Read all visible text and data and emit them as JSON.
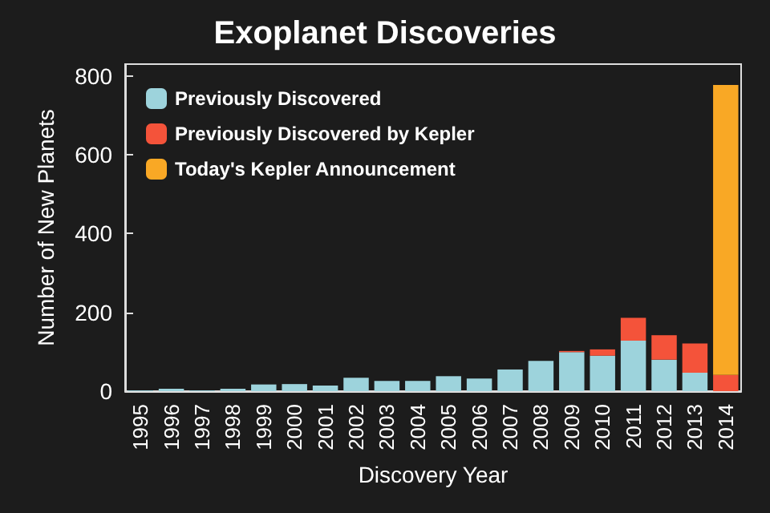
{
  "chart_data": {
    "type": "bar",
    "title": "Exoplanet Discoveries",
    "xlabel": "Discovery Year",
    "ylabel": "Number of New Planets",
    "categories": [
      "1995",
      "1996",
      "1997",
      "1998",
      "1999",
      "2000",
      "2001",
      "2002",
      "2003",
      "2004",
      "2005",
      "2006",
      "2007",
      "2008",
      "2009",
      "2010",
      "2011",
      "2012",
      "2013",
      "2014"
    ],
    "stacked": true,
    "series": [
      {
        "name": "Previously Discovered",
        "color": "#9dd3dc",
        "values": [
          2,
          6,
          2,
          6,
          17,
          18,
          14,
          34,
          26,
          26,
          38,
          32,
          55,
          77,
          99,
          90,
          128,
          80,
          47,
          null
        ]
      },
      {
        "name": "Previously Discovered by Kepler",
        "color": "#f4533a",
        "values": [
          null,
          null,
          null,
          null,
          null,
          null,
          null,
          null,
          null,
          null,
          null,
          null,
          null,
          null,
          3,
          16,
          58,
          62,
          74,
          41
        ]
      },
      {
        "name": "Today's Kepler Announcement",
        "color": "#f9a825",
        "values": [
          null,
          null,
          null,
          null,
          null,
          null,
          null,
          null,
          null,
          null,
          null,
          null,
          null,
          null,
          null,
          null,
          null,
          null,
          null,
          736
        ]
      }
    ],
    "ylim": [
      0,
      830
    ],
    "yticks": [
      0,
      200,
      400,
      600,
      800
    ],
    "legend": "top left"
  }
}
